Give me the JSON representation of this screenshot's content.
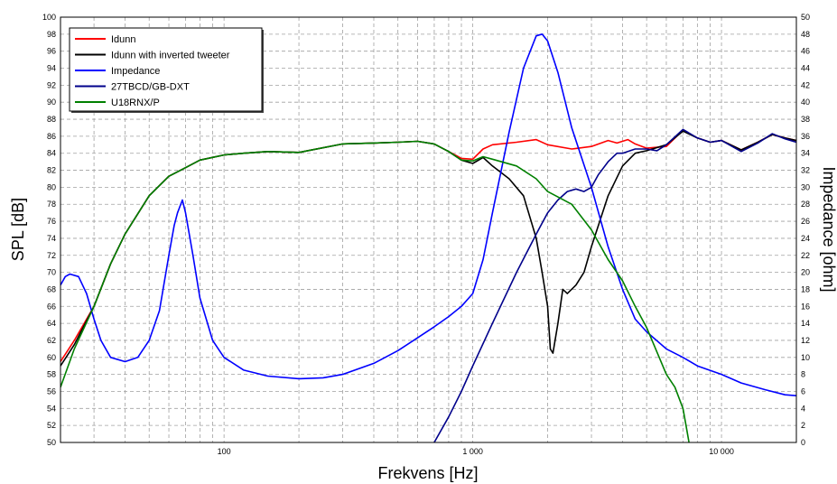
{
  "chart_data": {
    "type": "line",
    "xlabel": "Frekvens [Hz]",
    "ylabel": "SPL [dB]",
    "y2label": "Impedance [ohm]",
    "x_scale": "log",
    "xlim": [
      22,
      20000
    ],
    "ylim": [
      50,
      100
    ],
    "y2lim": [
      0,
      50
    ],
    "grid": true,
    "legend_position": "top-left",
    "x_tick_labels": [
      {
        "value": 100,
        "label": "100"
      },
      {
        "value": 1000,
        "label": "1 000"
      },
      {
        "value": 10000,
        "label": "10 000"
      }
    ],
    "y_ticks": [
      50,
      52,
      54,
      56,
      58,
      60,
      62,
      64,
      66,
      68,
      70,
      72,
      74,
      76,
      78,
      80,
      82,
      84,
      86,
      88,
      90,
      92,
      94,
      96,
      98,
      100
    ],
    "y2_ticks": [
      0,
      2,
      4,
      6,
      8,
      10,
      12,
      14,
      16,
      18,
      20,
      22,
      24,
      26,
      28,
      30,
      32,
      34,
      36,
      38,
      40,
      42,
      44,
      46,
      48,
      50
    ],
    "series": [
      {
        "name": "Idunn",
        "color": "#ff0000",
        "axis": "left",
        "x": [
          22,
          25,
          30,
          35,
          40,
          50,
          60,
          70,
          80,
          100,
          120,
          150,
          200,
          300,
          400,
          500,
          600,
          700,
          800,
          900,
          1000,
          1100,
          1200,
          1500,
          1800,
          2000,
          2500,
          3000,
          3500,
          3800,
          4200,
          4500,
          5000,
          6000,
          7000,
          8000,
          9000,
          10000,
          12000,
          14000,
          16000,
          18000,
          20000
        ],
        "y": [
          59.5,
          62,
          66,
          71,
          74.5,
          79,
          81.3,
          82.3,
          83.2,
          83.8,
          84,
          84.2,
          84.1,
          85.1,
          85.2,
          85.3,
          85.4,
          85.1,
          84.2,
          83.4,
          83.3,
          84.5,
          85,
          85.3,
          85.6,
          85,
          84.5,
          84.8,
          85.5,
          85.2,
          85.6,
          85.1,
          84.6,
          84.8,
          86.7,
          85.8,
          85.3,
          85.5,
          84.4,
          85.3,
          86.2,
          85.8,
          85.5
        ]
      },
      {
        "name": "Idunn with inverted tweeter",
        "color": "#000000",
        "axis": "left",
        "x": [
          22,
          25,
          30,
          35,
          40,
          50,
          60,
          70,
          80,
          100,
          120,
          150,
          200,
          300,
          400,
          500,
          600,
          700,
          800,
          900,
          1000,
          1100,
          1200,
          1400,
          1600,
          1800,
          1900,
          2000,
          2050,
          2100,
          2200,
          2300,
          2400,
          2600,
          2800,
          3000,
          3500,
          4000,
          4500,
          5000,
          6000,
          7000,
          8000,
          9000,
          10000,
          12000,
          14000,
          16000,
          18000,
          20000
        ],
        "y": [
          59,
          61.5,
          66,
          71,
          74.5,
          79,
          81.3,
          82.3,
          83.2,
          83.8,
          84,
          84.2,
          84.1,
          85.1,
          85.2,
          85.3,
          85.4,
          85.1,
          84.2,
          83.2,
          82.8,
          83.5,
          82.5,
          81,
          79,
          74,
          70,
          66,
          61,
          60.5,
          64,
          68,
          67.5,
          68.5,
          70,
          73,
          79,
          82.5,
          84,
          84.3,
          85,
          86.6,
          85.8,
          85.3,
          85.5,
          84.4,
          85.3,
          86.2,
          85.8,
          85.5
        ]
      },
      {
        "name": "Impedance",
        "color": "#0000ff",
        "axis": "right",
        "x": [
          22,
          23,
          24,
          26,
          28,
          30,
          32,
          35,
          40,
          45,
          50,
          55,
          60,
          63,
          65,
          68,
          70,
          75,
          80,
          90,
          100,
          120,
          150,
          200,
          250,
          300,
          400,
          500,
          600,
          700,
          800,
          900,
          1000,
          1100,
          1200,
          1400,
          1600,
          1800,
          1900,
          2000,
          2200,
          2500,
          3000,
          3500,
          4000,
          4500,
          5000,
          6000,
          7000,
          8000,
          10000,
          12000,
          15000,
          18000,
          20000
        ],
        "y": [
          18.5,
          19.5,
          19.8,
          19.5,
          17.5,
          14.5,
          12,
          10,
          9.5,
          10,
          12,
          15.5,
          22,
          25.5,
          27,
          28.5,
          27,
          22,
          17,
          12,
          10,
          8.5,
          7.8,
          7.5,
          7.6,
          8,
          9.3,
          10.8,
          12.3,
          13.6,
          14.8,
          16,
          17.5,
          21.5,
          27,
          36.5,
          44,
          47.8,
          48,
          47.2,
          43.5,
          37,
          30,
          23,
          18,
          14.5,
          13,
          11,
          10,
          9,
          8,
          7,
          6.2,
          5.6,
          5.5
        ]
      },
      {
        "name": "27TBCD/GB-DXT",
        "color": "#00008b",
        "axis": "left",
        "x": [
          700,
          800,
          900,
          1000,
          1200,
          1500,
          1800,
          2000,
          2200,
          2400,
          2600,
          2800,
          3000,
          3200,
          3500,
          3800,
          4000,
          4500,
          5000,
          5500,
          6000,
          7000,
          8000,
          9000,
          10000,
          12000,
          14000,
          16000,
          18000,
          20000
        ],
        "y": [
          50,
          53,
          56,
          59,
          64,
          70,
          74.5,
          77,
          78.5,
          79.5,
          79.8,
          79.5,
          80,
          81.5,
          83,
          84,
          84,
          84.5,
          84.5,
          84.3,
          85,
          86.8,
          85.8,
          85.3,
          85.5,
          84.2,
          85.2,
          86.3,
          85.7,
          85.3
        ]
      },
      {
        "name": "U18RNX/P",
        "color": "#008000",
        "axis": "left",
        "x": [
          22,
          25,
          30,
          35,
          40,
          50,
          60,
          70,
          80,
          100,
          120,
          150,
          200,
          300,
          400,
          500,
          600,
          700,
          800,
          900,
          1000,
          1100,
          1200,
          1500,
          1800,
          2000,
          2500,
          3000,
          3500,
          4000,
          4500,
          5000,
          6000,
          6500,
          7000,
          7200,
          7400
        ],
        "y": [
          56.5,
          61,
          66,
          71,
          74.5,
          79,
          81.3,
          82.3,
          83.2,
          83.8,
          84,
          84.2,
          84.1,
          85.1,
          85.2,
          85.3,
          85.4,
          85.1,
          84.2,
          83.2,
          83.1,
          83.6,
          83.3,
          82.5,
          81,
          79.5,
          78,
          75,
          71.5,
          69,
          66,
          63.5,
          58,
          56.5,
          54,
          52,
          50
        ]
      }
    ]
  }
}
